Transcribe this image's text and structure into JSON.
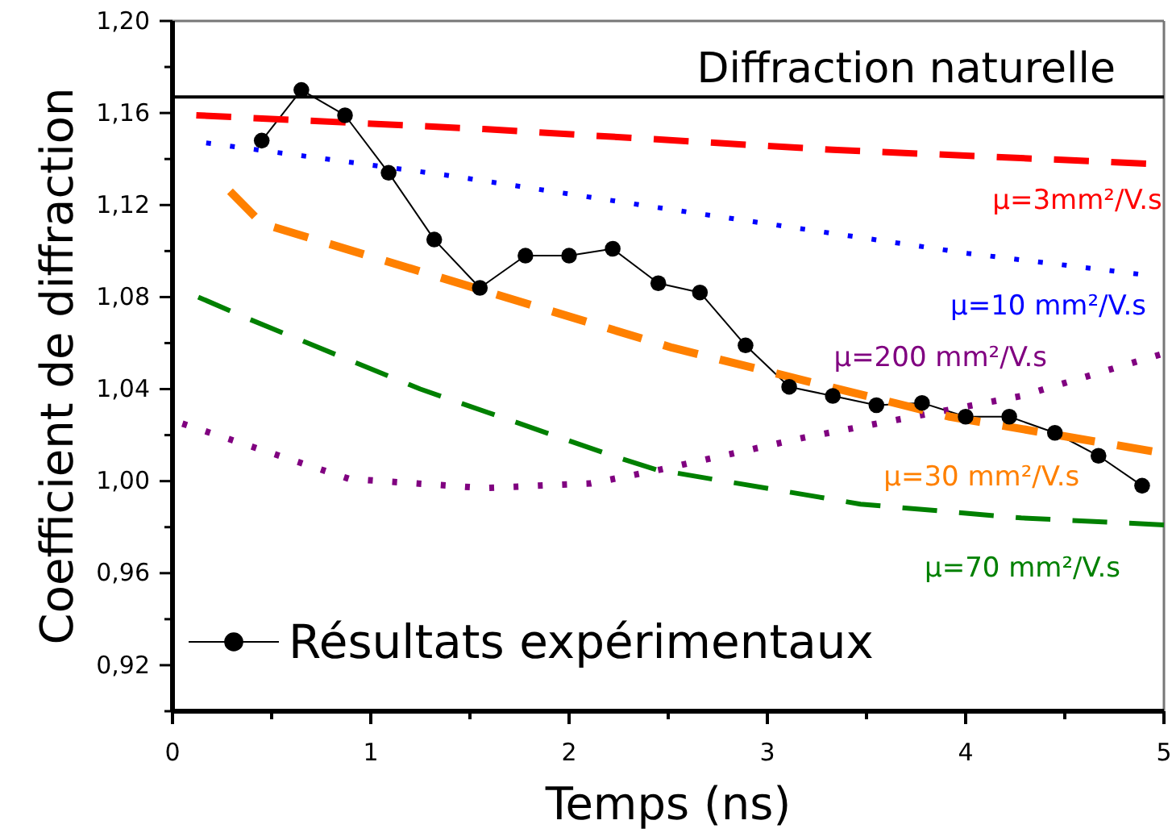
{
  "chart_data": {
    "type": "line",
    "xlabel": "Temps (ns)",
    "ylabel": "Coefficient de diffraction",
    "xlim": [
      0,
      5
    ],
    "ylim": [
      0.9,
      1.2
    ],
    "xticks": [
      0,
      {
        "value": 0.5,
        "label": null
      },
      1,
      {
        "value": 1.5,
        "label": null
      },
      2,
      {
        "value": 2.5,
        "label": null
      },
      3,
      {
        "value": 3.5,
        "label": null
      },
      4,
      {
        "value": 4.5,
        "label": null
      },
      5
    ],
    "yticks": [
      {
        "value": 0.9,
        "label": null
      },
      {
        "value": 0.92,
        "label": "0,92"
      },
      {
        "value": 0.94,
        "label": null
      },
      {
        "value": 0.96,
        "label": "0,96"
      },
      {
        "value": 0.98,
        "label": null
      },
      {
        "value": 1.0,
        "label": "1,00"
      },
      {
        "value": 1.02,
        "label": null
      },
      {
        "value": 1.04,
        "label": "1,04"
      },
      {
        "value": 1.06,
        "label": null
      },
      {
        "value": 1.08,
        "label": "1,08"
      },
      {
        "value": 1.1,
        "label": null
      },
      {
        "value": 1.12,
        "label": "1,12"
      },
      {
        "value": 1.14,
        "label": null
      },
      {
        "value": 1.16,
        "label": "1,16"
      },
      {
        "value": 1.18,
        "label": null
      },
      {
        "value": 1.2,
        "label": "1,20"
      }
    ],
    "legend": "bottom left",
    "ref_lines": [
      {
        "axis": "y",
        "value": 1.167,
        "label": "Diffraction naturelle",
        "color": "#000000"
      }
    ],
    "series": [
      {
        "name": "Résultats expérimentaux",
        "color": "#000000",
        "marker": "circle",
        "line_style": "solid",
        "x": [
          0.45,
          0.65,
          0.87,
          1.09,
          1.32,
          1.55,
          1.78,
          2.0,
          2.22,
          2.45,
          2.66,
          2.89,
          3.11,
          3.33,
          3.55,
          3.78,
          4.0,
          4.22,
          4.45,
          4.67,
          4.89
        ],
        "values": [
          1.148,
          1.17,
          1.159,
          1.134,
          1.105,
          1.084,
          1.098,
          1.098,
          1.101,
          1.086,
          1.082,
          1.059,
          1.041,
          1.037,
          1.033,
          1.034,
          1.028,
          1.028,
          1.021,
          1.011,
          0.998
        ]
      },
      {
        "name": "μ=3mm²/V.s",
        "color": "#ff0000",
        "marker": "none",
        "line_style": "dashed",
        "x": [
          0.12,
          1.57,
          3.33,
          4.91
        ],
        "values": [
          1.159,
          1.153,
          1.144,
          1.138
        ]
      },
      {
        "name": "μ=10 mm²/V.s",
        "color": "#0000ff",
        "marker": "none",
        "line_style": "dotted",
        "x": [
          0.17,
          1.38,
          2.44,
          4.01,
          4.87
        ],
        "values": [
          1.147,
          1.133,
          1.119,
          1.099,
          1.09
        ]
      },
      {
        "name": "μ=200 mm²/V.s",
        "color": "#800080",
        "marker": "none",
        "line_style": "dotted",
        "x": [
          0.05,
          0.89,
          1.57,
          2.11,
          2.46,
          3.19,
          4.28,
          4.98
        ],
        "values": [
          1.025,
          1.001,
          0.997,
          0.999,
          1.005,
          1.019,
          1.037,
          1.055
        ]
      },
      {
        "name": "μ=30 mm²/V.s",
        "color": "#ff8000",
        "marker": "none",
        "line_style": "dashed",
        "x": [
          0.29,
          0.45,
          2.52,
          3.92,
          4.94
        ],
        "values": [
          1.126,
          1.112,
          1.058,
          1.028,
          1.013
        ]
      },
      {
        "name": "μ=70 mm²/V.s",
        "color": "#008000",
        "marker": "none",
        "line_style": "dashed",
        "x": [
          0.13,
          0.37,
          1.25,
          2.22,
          2.44,
          3.47,
          4.28,
          5.0
        ],
        "values": [
          1.08,
          1.071,
          1.04,
          1.011,
          1.005,
          0.99,
          0.984,
          0.981
        ]
      }
    ]
  }
}
